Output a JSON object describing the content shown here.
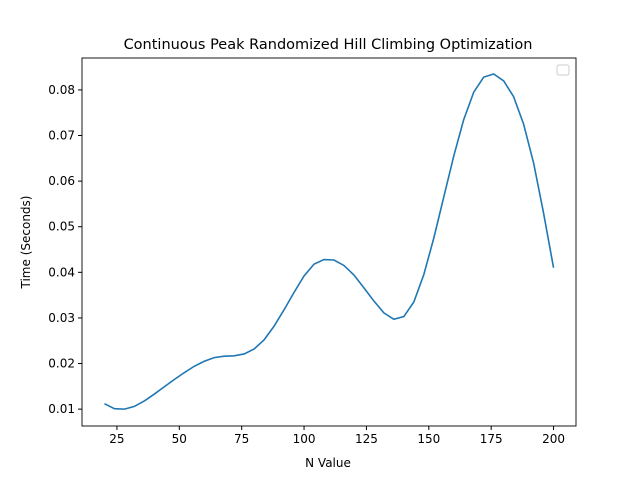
{
  "chart_data": {
    "type": "line",
    "title": "Continuous Peak Randomized Hill Climbing Optimization",
    "xlabel": "N Value",
    "ylabel": "Time (Seconds)",
    "x": [
      20,
      24,
      28,
      32,
      36,
      40,
      44,
      48,
      52,
      56,
      60,
      64,
      68,
      72,
      76,
      80,
      84,
      88,
      92,
      96,
      100,
      104,
      108,
      112,
      116,
      120,
      124,
      128,
      132,
      136,
      140,
      144,
      148,
      152,
      156,
      160,
      164,
      168,
      172,
      176,
      180,
      184,
      188,
      192,
      196,
      200
    ],
    "series": [
      {
        "color": "#1f77b4",
        "values": [
          0.0112,
          0.0101,
          0.01,
          0.0106,
          0.0118,
          0.0133,
          0.0149,
          0.0165,
          0.018,
          0.0194,
          0.0205,
          0.0213,
          0.0216,
          0.0217,
          0.0221,
          0.0232,
          0.0252,
          0.0282,
          0.0318,
          0.0356,
          0.0392,
          0.0418,
          0.0428,
          0.0427,
          0.0415,
          0.0394,
          0.0366,
          0.0337,
          0.0311,
          0.0297,
          0.0303,
          0.0335,
          0.0395,
          0.0475,
          0.0565,
          0.0655,
          0.0735,
          0.0795,
          0.0828,
          0.0835,
          0.082,
          0.0785,
          0.0725,
          0.064,
          0.053,
          0.041
        ]
      }
    ],
    "xlim": [
      11,
      209
    ],
    "ylim": [
      0.0063,
      0.087
    ],
    "xticks": [
      25,
      50,
      75,
      100,
      125,
      150,
      175,
      200
    ],
    "yticks": [
      0.01,
      0.02,
      0.03,
      0.04,
      0.05,
      0.06,
      0.07,
      0.08
    ]
  }
}
